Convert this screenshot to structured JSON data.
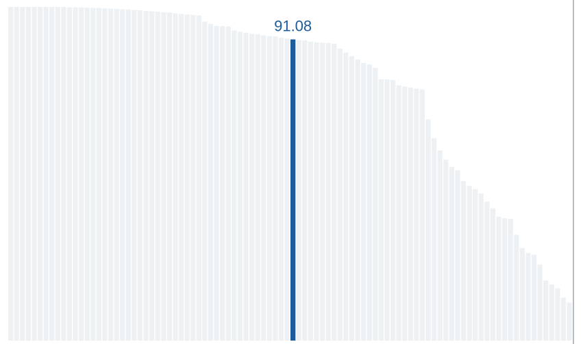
{
  "colors": {
    "bar": "#eef1f4",
    "highlight": "#1d5b9a",
    "label": "#1d5b9a"
  },
  "chart_data": {
    "type": "bar",
    "sorted": "descending",
    "ylim": [
      0,
      103
    ],
    "grid": false,
    "highlight_index": 48,
    "highlight_label": "91.08",
    "values": [
      100.9,
      100.9,
      100.9,
      100.9,
      100.9,
      100.9,
      100.9,
      100.9,
      100.9,
      100.9,
      100.8,
      100.8,
      100.8,
      100.7,
      100.6,
      100.6,
      100.5,
      100.4,
      100.3,
      100.2,
      100.1,
      100.0,
      99.9,
      99.7,
      99.6,
      99.5,
      99.3,
      99.2,
      99.0,
      98.8,
      98.6,
      98.5,
      98.3,
      96.5,
      95.8,
      95.2,
      95.1,
      95.0,
      93.8,
      93.4,
      93.1,
      92.8,
      92.6,
      92.3,
      92.1,
      92.0,
      91.6,
      91.3,
      91.08,
      90.9,
      90.8,
      90.4,
      90.2,
      90.1,
      90.0,
      89.8,
      88.3,
      87.1,
      86.0,
      85.0,
      84.0,
      83.5,
      82.5,
      79.0,
      79.0,
      78.8,
      77.2,
      76.8,
      76.5,
      76.2,
      76.0,
      66.9,
      61.2,
      57.5,
      54.7,
      52.5,
      51.5,
      48.2,
      46.8,
      45.8,
      44.5,
      42.0,
      40.0,
      37.5,
      37.0,
      36.8,
      32.0,
      28.0,
      26.5,
      26.0,
      23.0,
      18.2,
      17.0,
      15.8,
      13.0,
      11.5
    ]
  }
}
